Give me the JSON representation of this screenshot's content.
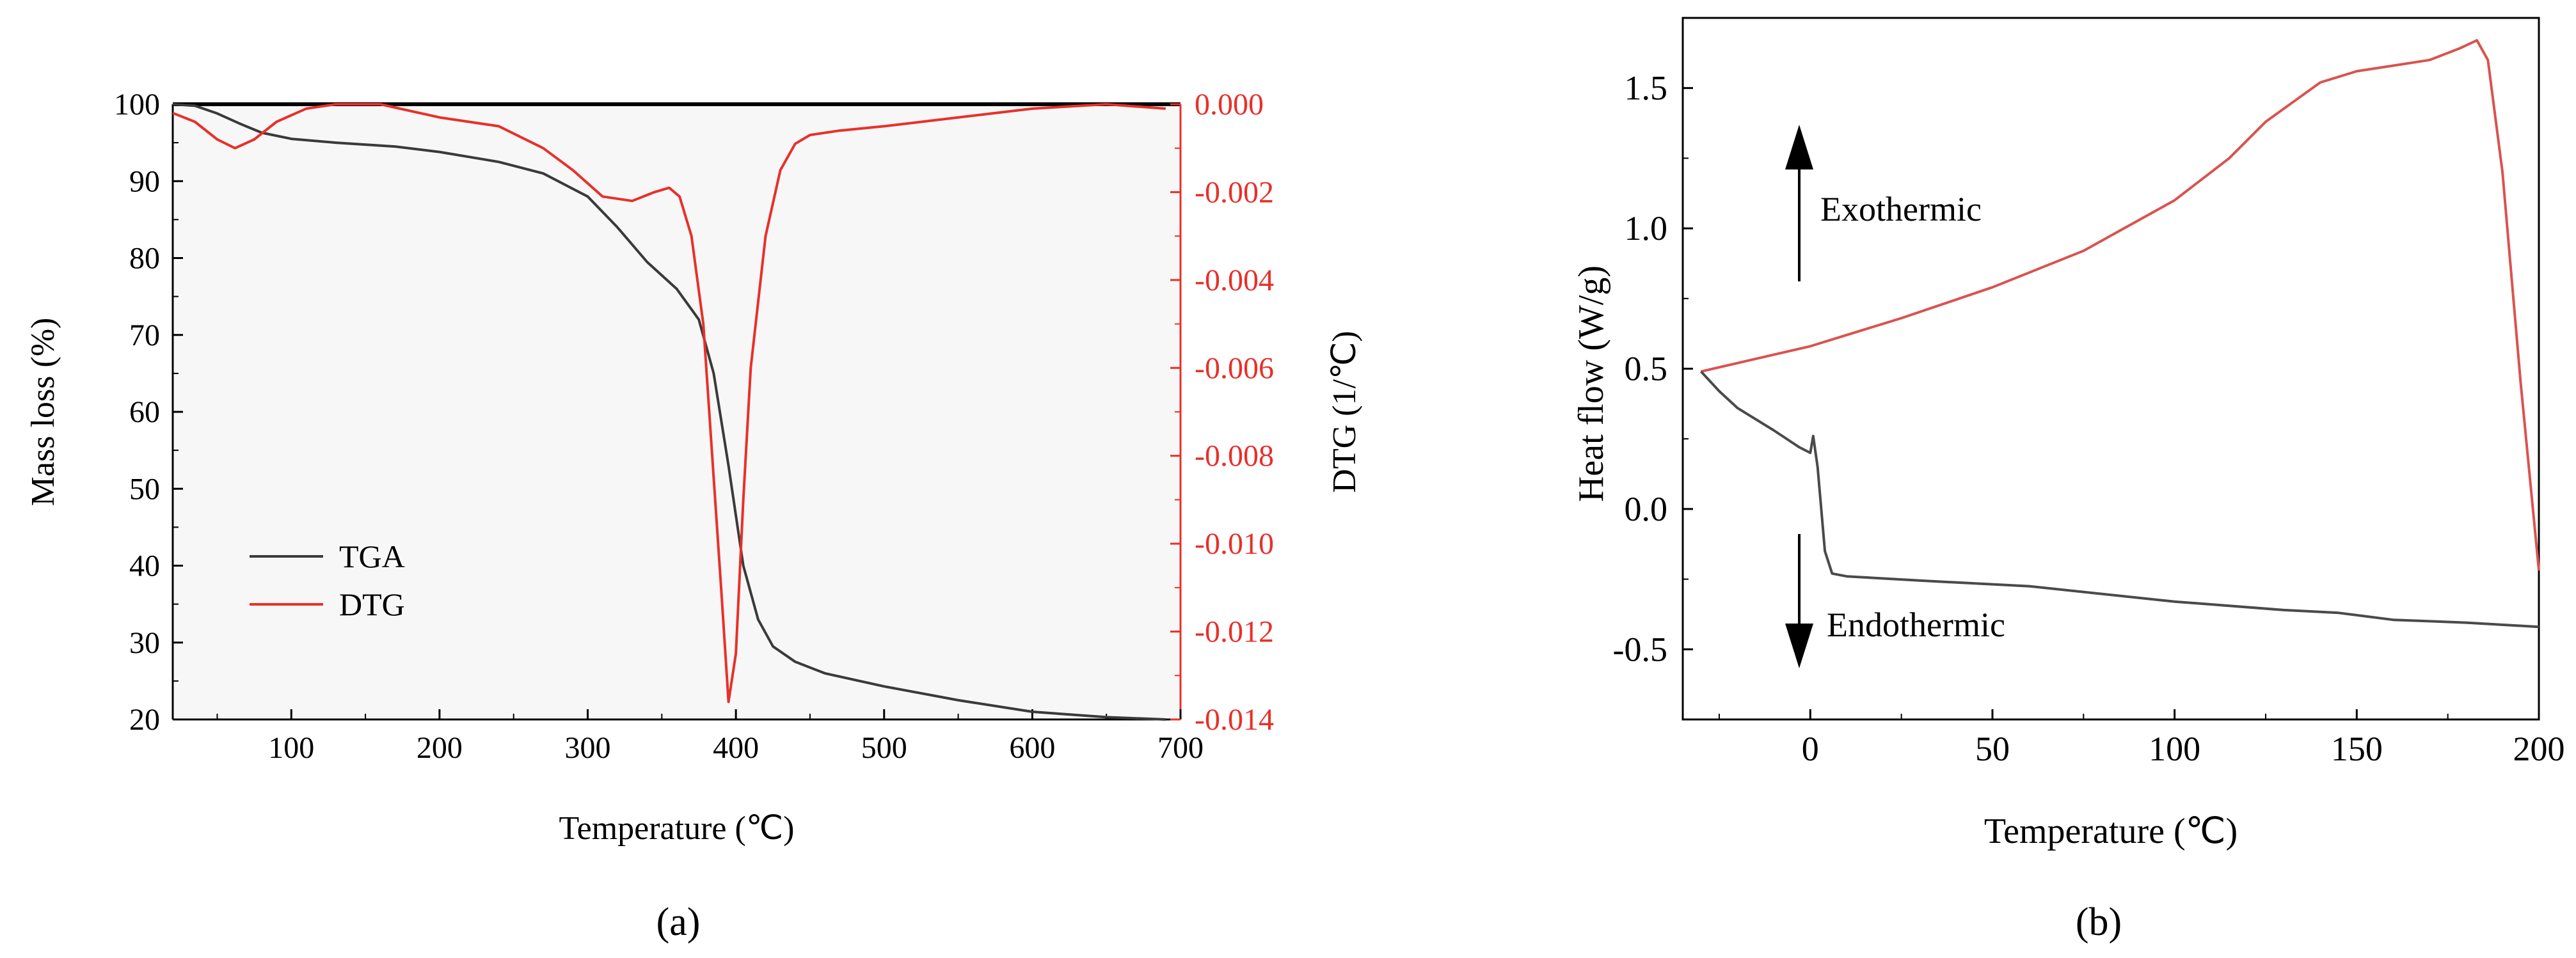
{
  "colors": {
    "tga": "#3a3a3a",
    "dtg": "#e8302a",
    "dsc_upper": "#d9534f",
    "dsc_lower": "#4a4a4a",
    "axis": "#000000",
    "plot_bg_a": "#f7f7f7"
  },
  "panels": {
    "a_label": "(a)",
    "b_label": "(b)"
  },
  "chart_data": [
    {
      "type": "line",
      "xlabel": "Temperature (℃)",
      "ylabel": "Mass loss (%)",
      "y2label": "DTG (1/℃)",
      "xlim": [
        20,
        700
      ],
      "ylim": [
        20,
        100
      ],
      "y2lim": [
        -0.014,
        0.0
      ],
      "xticks": [
        100,
        200,
        300,
        400,
        500,
        600,
        700
      ],
      "yticks": [
        20,
        30,
        40,
        50,
        60,
        70,
        80,
        90,
        100
      ],
      "y2ticks": [
        0.0,
        -0.002,
        -0.004,
        -0.006,
        -0.008,
        -0.01,
        -0.012,
        -0.014
      ],
      "xtick_labels": [
        "100",
        "200",
        "300",
        "400",
        "500",
        "600",
        "700"
      ],
      "ytick_labels": [
        "20",
        "30",
        "40",
        "50",
        "60",
        "70",
        "80",
        "90",
        "100"
      ],
      "y2tick_labels": [
        "0.000",
        "-0.002",
        "-0.004",
        "-0.006",
        "-0.008",
        "-0.010",
        "-0.012",
        "-0.014"
      ],
      "legend": {
        "placement": "lower-left",
        "entries": [
          "TGA",
          "DTG"
        ]
      },
      "grid": false,
      "series": [
        {
          "name": "TGA",
          "axis": "left",
          "x": [
            20,
            35,
            50,
            65,
            80,
            100,
            130,
            170,
            200,
            240,
            270,
            300,
            320,
            340,
            360,
            375,
            385,
            395,
            405,
            415,
            425,
            440,
            460,
            500,
            550,
            600,
            650,
            690
          ],
          "y": [
            100,
            99.8,
            98.8,
            97.5,
            96.3,
            95.5,
            95.0,
            94.5,
            93.8,
            92.5,
            91,
            88,
            84,
            79.5,
            76,
            72,
            65,
            53,
            40,
            33,
            29.5,
            27.5,
            26,
            24.3,
            22.5,
            21,
            20.3,
            20
          ]
        },
        {
          "name": "DTG",
          "axis": "right",
          "x": [
            20,
            35,
            50,
            62,
            75,
            90,
            110,
            130,
            160,
            200,
            240,
            270,
            290,
            310,
            330,
            345,
            355,
            362,
            370,
            378,
            385,
            390,
            395,
            400,
            405,
            410,
            420,
            430,
            440,
            450,
            470,
            500,
            550,
            600,
            650,
            690
          ],
          "y": [
            -0.0002,
            -0.0004,
            -0.0008,
            -0.001,
            -0.0008,
            -0.0004,
            -0.0001,
            0.0,
            0.0,
            -0.0003,
            -0.0005,
            -0.001,
            -0.0015,
            -0.0021,
            -0.0022,
            -0.002,
            -0.0019,
            -0.0021,
            -0.003,
            -0.005,
            -0.0085,
            -0.011,
            -0.0136,
            -0.0125,
            -0.009,
            -0.006,
            -0.003,
            -0.0015,
            -0.0009,
            -0.0007,
            -0.0006,
            -0.0005,
            -0.0003,
            -0.0001,
            0.0,
            -0.0001
          ]
        }
      ]
    },
    {
      "type": "line",
      "xlabel": "Temperature (℃)",
      "ylabel": "Heat flow (W/g)",
      "xlim": [
        -35,
        200
      ],
      "ylim": [
        -0.75,
        1.75
      ],
      "xticks": [
        0,
        50,
        100,
        150,
        200
      ],
      "yticks": [
        -0.5,
        0.0,
        0.5,
        1.0,
        1.5
      ],
      "xtick_labels": [
        "0",
        "50",
        "100",
        "150",
        "200"
      ],
      "ytick_labels": [
        "-0.5",
        "0.0",
        "0.5",
        "1.0",
        "1.5"
      ],
      "grid": false,
      "annotations": [
        {
          "text": "Exothermic",
          "arrow": "up"
        },
        {
          "text": "Endothermic",
          "arrow": "down"
        }
      ],
      "series": [
        {
          "name": "",
          "x": [
            -30,
            -10,
            0,
            10,
            25,
            50,
            75,
            100,
            115,
            125,
            140,
            150,
            160,
            170,
            178,
            183,
            186,
            190,
            195,
            200
          ],
          "y": [
            0.49,
            0.55,
            0.58,
            0.62,
            0.68,
            0.79,
            0.92,
            1.1,
            1.25,
            1.38,
            1.52,
            1.56,
            1.58,
            1.6,
            1.64,
            1.67,
            1.6,
            1.2,
            0.45,
            -0.22
          ]
        },
        {
          "name": "",
          "x": [
            -30,
            -25,
            -20,
            -10,
            -3,
            0,
            0.8,
            2,
            4,
            6,
            10,
            30,
            60,
            100,
            130,
            145,
            160,
            180,
            200
          ],
          "y": [
            0.49,
            0.42,
            0.36,
            0.28,
            0.22,
            0.2,
            0.26,
            0.15,
            -0.15,
            -0.23,
            -0.24,
            -0.255,
            -0.275,
            -0.33,
            -0.36,
            -0.37,
            -0.395,
            -0.405,
            -0.42
          ]
        }
      ]
    }
  ]
}
